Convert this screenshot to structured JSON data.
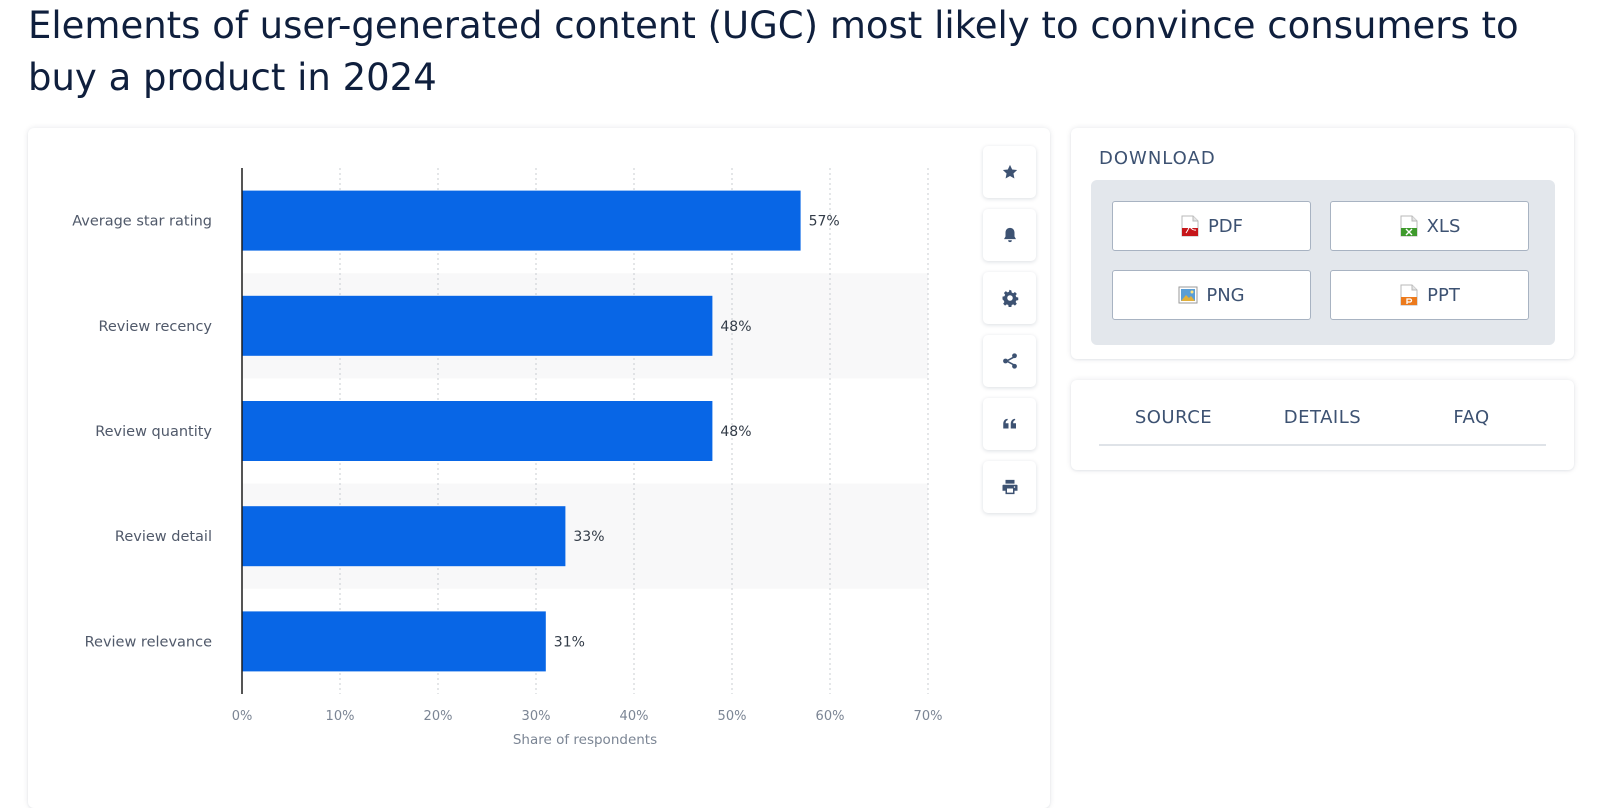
{
  "page": {
    "title": "Elements of user-generated content (UGC) most likely to convince consumers to buy a product in 2024"
  },
  "chart_data": {
    "type": "bar",
    "orientation": "horizontal",
    "categories": [
      "Average star rating",
      "Review recency",
      "Review quantity",
      "Review detail",
      "Review relevance"
    ],
    "values": [
      57,
      48,
      48,
      33,
      31
    ],
    "value_labels": [
      "57%",
      "48%",
      "48%",
      "33%",
      "31%"
    ],
    "xlabel": "Share of respondents",
    "ylabel": "",
    "xlim": [
      0,
      70
    ],
    "xticks": [
      0,
      10,
      20,
      30,
      40,
      50,
      60,
      70
    ],
    "xtick_labels": [
      "0%",
      "10%",
      "20%",
      "30%",
      "40%",
      "50%",
      "60%",
      "70%"
    ],
    "grid": "vertical-dotted",
    "bar_color": "#0866e6",
    "alt_row_color": "#f8f8f9"
  },
  "toolbar": {
    "items": [
      {
        "name": "favorite-button",
        "icon": "star-icon"
      },
      {
        "name": "notification-button",
        "icon": "bell-icon"
      },
      {
        "name": "settings-button",
        "icon": "gear-icon"
      },
      {
        "name": "share-button",
        "icon": "share-icon"
      },
      {
        "name": "cite-button",
        "icon": "quote-icon"
      },
      {
        "name": "print-button",
        "icon": "print-icon"
      }
    ]
  },
  "download": {
    "title": "DOWNLOAD",
    "buttons": [
      {
        "label": "PDF",
        "icon": "pdf-file-icon"
      },
      {
        "label": "XLS",
        "icon": "xls-file-icon"
      },
      {
        "label": "PNG",
        "icon": "png-file-icon"
      },
      {
        "label": "PPT",
        "icon": "ppt-file-icon"
      }
    ]
  },
  "tabs": [
    "SOURCE",
    "DETAILS",
    "FAQ"
  ]
}
